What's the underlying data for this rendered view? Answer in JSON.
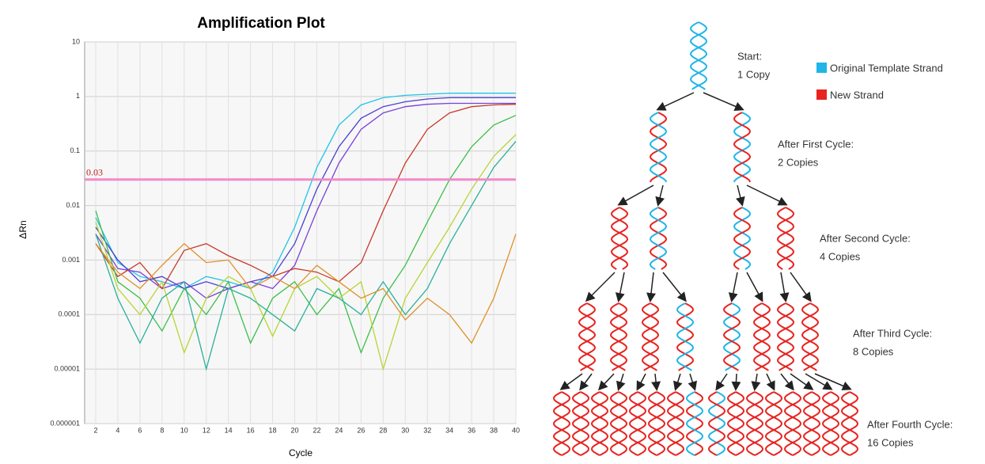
{
  "chart_data": {
    "type": "line",
    "title": "Amplification Plot",
    "xlabel": "Cycle",
    "ylabel": "ΔRn",
    "yscale": "log",
    "grid": true,
    "threshold": 0.03,
    "threshold_color": "#f08ac8",
    "x": [
      2,
      4,
      6,
      8,
      10,
      12,
      14,
      16,
      18,
      20,
      22,
      24,
      26,
      28,
      30,
      32,
      34,
      36,
      38,
      40
    ],
    "xlim": [
      1,
      40
    ],
    "xticks": [
      2,
      4,
      6,
      8,
      10,
      12,
      14,
      16,
      18,
      20,
      22,
      24,
      26,
      28,
      30,
      32,
      34,
      36,
      38,
      40
    ],
    "ylim": [
      1e-06,
      10
    ],
    "yticks": [
      10,
      1,
      0.1,
      0.01,
      0.001,
      0.0001,
      1e-05,
      1e-06
    ],
    "series": [
      {
        "color": "#22c4e8",
        "values": [
          0.006,
          0.0009,
          0.0005,
          0.0004,
          0.0003,
          0.0005,
          0.0004,
          0.0003,
          0.0006,
          0.004,
          0.05,
          0.3,
          0.7,
          0.95,
          1.05,
          1.1,
          1.15,
          1.15,
          1.15,
          1.15
        ]
      },
      {
        "color": "#4a3fd0",
        "values": [
          0.004,
          0.001,
          0.0004,
          0.0005,
          0.0003,
          0.0004,
          0.0003,
          0.0004,
          0.0005,
          0.002,
          0.02,
          0.12,
          0.4,
          0.65,
          0.8,
          0.9,
          0.95,
          0.95,
          0.95,
          0.95
        ]
      },
      {
        "color": "#7a3fd8",
        "values": [
          0.003,
          0.0007,
          0.0006,
          0.0003,
          0.0004,
          0.0002,
          0.0003,
          0.0004,
          0.0003,
          0.0008,
          0.008,
          0.06,
          0.25,
          0.5,
          0.65,
          0.72,
          0.75,
          0.75,
          0.75,
          0.75
        ]
      },
      {
        "color": "#c83a2a",
        "values": [
          0.002,
          0.0005,
          0.0009,
          0.0003,
          0.0015,
          0.002,
          0.0012,
          0.0008,
          0.0005,
          0.0007,
          0.0006,
          0.0004,
          0.0009,
          0.008,
          0.06,
          0.25,
          0.5,
          0.65,
          0.7,
          0.72
        ]
      },
      {
        "color": "#3cbf4a",
        "values": [
          0.008,
          0.0004,
          0.0002,
          5e-05,
          0.0003,
          0.0001,
          0.0004,
          3e-05,
          0.0002,
          0.0004,
          0.0001,
          0.0003,
          2e-05,
          0.0002,
          0.0008,
          0.005,
          0.03,
          0.12,
          0.3,
          0.45
        ]
      },
      {
        "color": "#b8d436",
        "values": [
          0.005,
          0.0003,
          0.0001,
          0.0004,
          2e-05,
          0.0002,
          0.0005,
          0.0003,
          4e-05,
          0.0003,
          0.0005,
          0.0002,
          0.0004,
          1e-05,
          0.0002,
          0.0009,
          0.004,
          0.02,
          0.08,
          0.2
        ]
      },
      {
        "color": "#2ab09a",
        "values": [
          0.003,
          0.0002,
          3e-05,
          0.0002,
          0.0004,
          1e-05,
          0.0003,
          0.0002,
          0.0001,
          5e-05,
          0.0003,
          0.0002,
          0.0001,
          0.0004,
          0.0001,
          0.0003,
          0.002,
          0.01,
          0.05,
          0.15
        ]
      },
      {
        "color": "#e0902a",
        "values": [
          0.002,
          0.0006,
          0.0003,
          0.0008,
          0.002,
          0.0009,
          0.001,
          0.0003,
          0.0005,
          0.0003,
          0.0008,
          0.0004,
          0.0002,
          0.0003,
          8e-05,
          0.0002,
          0.0001,
          3e-05,
          0.0002,
          0.003
        ]
      }
    ]
  },
  "diagram": {
    "stages": [
      {
        "title": "Start:",
        "copies": "1 Copy"
      },
      {
        "title": "After First Cycle:",
        "copies": "2 Copies"
      },
      {
        "title": "After Second Cycle:",
        "copies": "4 Copies"
      },
      {
        "title": "After Third Cycle:",
        "copies": "8 Copies"
      },
      {
        "title": "After Fourth Cycle:",
        "copies": "16 Copies"
      }
    ],
    "legend": [
      {
        "label": "Original Template Strand",
        "color": "#1fb5e8"
      },
      {
        "label": "New Strand",
        "color": "#e8231f"
      }
    ]
  }
}
